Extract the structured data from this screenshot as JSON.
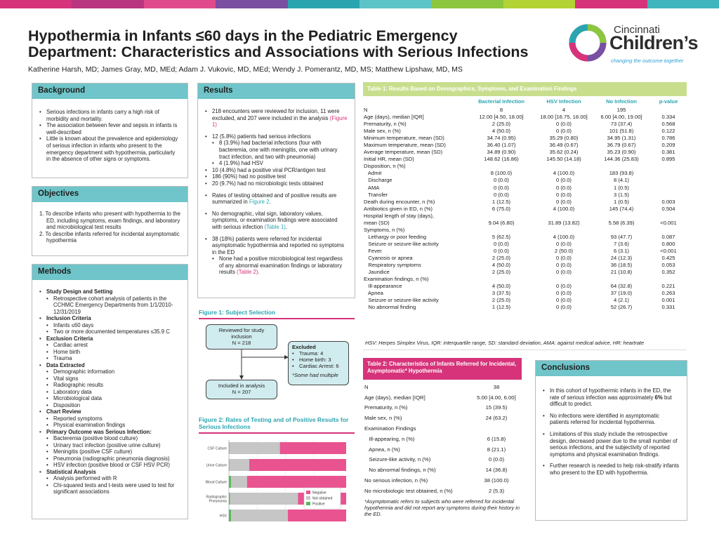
{
  "colors": {
    "accent_teal": "#6fc5c9",
    "accent_pink": "#d6337a",
    "accent_green": "#c8de8d",
    "topbar": [
      "#d6337a",
      "#b93580",
      "#e04a8c",
      "#7a4ea0",
      "#2aa5b0",
      "#5cc3c7",
      "#8cc63f",
      "#b3d334",
      "#d6337a",
      "#3fb5bd"
    ]
  },
  "header": {
    "title_line1": "Hypothermia in Infants ≤60 days in the Pediatric Emergency",
    "title_line2": "Department: Characteristics and Associations with Serious Infections",
    "authors": "Katherine Harsh, MD; James Gray, MD, MEd; Adam J. Vukovic, MD, MEd; Wendy J. Pomerantz, MD, MS; Matthew Lipshaw, MD, MS"
  },
  "logo": {
    "word1": "Cincinnati",
    "word2": "Children’s",
    "tagline": "changing the outcome together"
  },
  "background": {
    "heading": "Background",
    "bullets": [
      "Serious infections in infants carry a high risk of morbidity and mortality.",
      "The association between fever and sepsis in infants is well-described",
      "Little is known about the prevalence and epidemiology of serious infection in infants who present to the emergency department with hypothermia, particularly in the absence of other signs or symptoms."
    ]
  },
  "objectives": {
    "heading": "Objectives",
    "items": [
      "1.  To describe infants who present with hypothermia to the ED, including symptoms, exam findings, and laboratory and microbiological test results",
      "2.  To describe infants referred for incidental asymptomatic hypothermia"
    ]
  },
  "methods": {
    "heading": "Methods",
    "sections": [
      {
        "title": "Study Design and Setting",
        "items": [
          "Retrospective cohort analysis of patients in the CCHMC Emergency Departments from 1/1/2010-12/31/2019"
        ]
      },
      {
        "title": "Inclusion Criteria",
        "items": [
          "Infants ≤60 days",
          "Two or more documented temperatures ≤35.9 C"
        ]
      },
      {
        "title": "Exclusion Criteria",
        "items": [
          "Cardiac arrest",
          "Home birth",
          "Trauma"
        ]
      },
      {
        "title": "Data Extracted",
        "items": [
          "Demographic information",
          "Vital signs",
          "Radiographic results",
          "Laboratory data",
          "Microbiological data",
          "Disposition"
        ]
      },
      {
        "title": "Chart Review",
        "items": [
          "Reported symptoms",
          "Physical examination findings"
        ]
      },
      {
        "title": "Primary Outcome was Serious Infection:",
        "items": [
          "Bacteremia (positive blood culture)",
          "Urinary tract infection (positive urine culture)",
          "Meningitis (positive CSF culture)",
          "Pneumonia (radiographic pneumonia diagnosis)",
          "HSV infection (positive blood or CSF HSV PCR)"
        ]
      },
      {
        "title": "Statistical Analysis",
        "items": [
          "Analysis performed with R",
          "Chi-squared tests and t-tests were used to test for significant associations"
        ]
      }
    ]
  },
  "results": {
    "heading": "Results",
    "p1_text": "218 encounters were reviewed for inclusion, 11 were excluded, and 207 were included in the analysis",
    "p1_link": "(Figure 1)",
    "p2_main": "12 (5.8%) patients had serious infections",
    "p2_sub1": "8 (3.9%) had bacterial infections (four with bacteremia, one with meningitis, one with urinary tract infection, and two with pneumonia)",
    "p2_sub2": "4 (1.9%) had HSV",
    "p2_b2": "10 (4.8%) had a positive viral PCR/antigen test",
    "p2_b3": "186 (90%) had no positive test",
    "p2_b4": "20 (9.7%) had no microbiologic tests obtained",
    "p3_text": "Rates of testing obtained and of positive results are summarized in",
    "p3_link": "Figure 2",
    "p4_text": "No demographic, vital sign, laboratory values, symptoms, or examination findings were associated with serious infection",
    "p4_link": "(Table 1)",
    "p5_text": "38 (18%) patients were referred for incidental asymptomatic hypothermia and reported no symptoms in the ED",
    "p5_sub": "None had a positive microbiological test regardless of any abnormal examination findings or laboratory results",
    "p5_link": "(Table 2)"
  },
  "figure1": {
    "title": "Figure 1: Subject Selection",
    "box1": "Reviewed for study inclusion",
    "box1_n": "N = 218",
    "excluded_title": "Excluded",
    "excluded_items": [
      "Trauma: 4",
      "Home birth: 3",
      "Cardiac Arrest: 6"
    ],
    "excluded_note": "*Some had multiple",
    "box3": "Included in analysis",
    "box3_n": "N = 207"
  },
  "chart_data": {
    "type": "bar",
    "title": "Figure 2: Rates of Testing and of Positive Results for Serious Infections",
    "orientation": "horizontal-stacked",
    "categories": [
      "CSF Culture",
      "Urine Culture",
      "Blood Culture",
      "Radiographic Pneumonia",
      "HSV"
    ],
    "series": [
      {
        "name": "Positive",
        "color": "#5cb85c",
        "values": [
          1,
          1,
          4,
          2,
          4
        ]
      },
      {
        "name": "Not obtained",
        "color": "#c6c6c6",
        "values": [
          89,
          35,
          28,
          120,
          100
        ]
      },
      {
        "name": "Negative",
        "color": "#e9538f",
        "values": [
          117,
          171,
          175,
          85,
          103
        ]
      }
    ],
    "xlim": [
      0,
      207
    ],
    "xticks": [
      "0",
      "50",
      "100",
      "150",
      "200"
    ]
  },
  "table1": {
    "title": "Table 1: Results Based on Demographics, Symptoms, and Examination Findings",
    "columns": [
      "",
      "Bacterial Infection",
      "HSV Infection",
      "No Infection",
      "p-value"
    ],
    "rows": [
      [
        "N",
        "8",
        "4",
        "195",
        ""
      ],
      [
        "Age (days), median [IQR]",
        "12.00 [4.50, 18.00]",
        "18.00 [16.75, 18.00]",
        "6.00 [4.00, 19.00]",
        "0.334"
      ],
      [
        "Prematurity, n (%)",
        "2 (25.0)",
        "0 (0.0)",
        "73 (37.4)",
        "0.568"
      ],
      [
        "Male sex, n (%)",
        "4 (50.0)",
        "0 (0.0)",
        "101 (51.8)",
        "0.122"
      ],
      [
        "Minimum temperature, mean (SD)",
        "34.74 (0.95)",
        "35.29 (0.80)",
        "34.95 (1.31)",
        "0.786"
      ],
      [
        "Maximum temperature, mean (SD)",
        "36.40 (1.07)",
        "36.49 (0.67)",
        "36.79 (0.67)",
        "0.209"
      ],
      [
        "Average temperature, mean (SD)",
        "34.89 (0.90)",
        "35.62 (0.24)",
        "35.23 (0.90)",
        "0.381"
      ],
      [
        "Initial HR, mean (SD)",
        "148.62 (16.86)",
        "145.50 (14.18)",
        "144.36 (25.83)",
        "0.895"
      ],
      [
        "Disposition, n (%)",
        "",
        "",
        "",
        ""
      ],
      [
        "   Admit",
        "8 (100.0)",
        "4 (100.0)",
        "183 (93.8)",
        ""
      ],
      [
        "   Discharge",
        "0 (0.0)",
        "0 (0.0)",
        "8 (4.1)",
        ""
      ],
      [
        "   AMA",
        "0 (0.0)",
        "0 (0.0)",
        "1 (0.5)",
        ""
      ],
      [
        "   Transfer",
        "0 (0.0)",
        "0 (0.0)",
        "3 (1.5)",
        ""
      ],
      [
        "Death during encounter, n (%)",
        "1 (12.5)",
        "0 (0.0)",
        "1 (0.5)",
        "0.003"
      ],
      [
        "Antibiotics given in ED, n (%)",
        "6 (75.0)",
        "4 (100.0)",
        "145 (74.4)",
        "0.504"
      ],
      [
        "Hospital length of stay (days),",
        "",
        "",
        "",
        ""
      ],
      [
        "mean (SD)",
        "9.04 (6.80)",
        "31.89 (13.82)",
        "5.58 (6.39)",
        "<0.001"
      ],
      [
        "Symptoms, n (%)",
        "",
        "",
        "",
        ""
      ],
      [
        "   Lethargy or poor feeding",
        "5 (62.5)",
        "4 (100.0)",
        "93 (47.7)",
        "0.087"
      ],
      [
        "   Seizure or seizure-like activity",
        "0 (0.0)",
        "0 (0.0)",
        "7 (3.6)",
        "0.800"
      ],
      [
        "   Fever",
        "0 (0.0)",
        "2 (50.0)",
        "6 (3.1)",
        "<0.001"
      ],
      [
        "   Cyanosis or apnea",
        "2 (25.0)",
        "0 (0.0)",
        "24 (12.3)",
        "0.425"
      ],
      [
        "   Respiratory symptoms",
        "4 (50.0)",
        "0 (0.0)",
        "36 (18.5)",
        "0.053"
      ],
      [
        "   Jaundice",
        "2 (25.0)",
        "0 (0.0)",
        "21 (10.8)",
        "0.352"
      ],
      [
        "Examination findings, n (%)",
        "",
        "",
        "",
        ""
      ],
      [
        "   Ill-appearance",
        "4 (50.0)",
        "0 (0.0)",
        "64 (32.8)",
        "0.221"
      ],
      [
        "   Apnea",
        "3 (37.5)",
        "0 (0.0)",
        "37 (19.0)",
        "0.263"
      ],
      [
        "   Seizure or seizure-like activity",
        "2 (25.0)",
        "0 (0.0)",
        "4 (2.1)",
        "0.001"
      ],
      [
        "   No abnormal finding",
        "1 (12.5)",
        "0 (0.0)",
        "52 (26.7)",
        "0.331"
      ]
    ],
    "footnote": "HSV: Herpes Simplex Virus, IQR: interquartile range, SD: standard deviation, AMA: against medical advice, HR: heartrate"
  },
  "table2": {
    "title": "Table 2: Characteristics of Infants Referred for Incidental, Asymptomatic* Hypothermia",
    "rows": [
      [
        "N",
        "38"
      ],
      [
        "Age (days), median [IQR]",
        "5.00 [4.00, 6.00]"
      ],
      [
        "Prematurity, n (%)",
        "15 (39.5)"
      ],
      [
        "Male sex, n (%)",
        "24 (63.2)"
      ],
      [
        "Examination Findings",
        ""
      ],
      [
        "   Ill-appearing, n (%)",
        "6 (15.8)"
      ],
      [
        "   Apnea, n (%)",
        "8 (21.1)"
      ],
      [
        "   Seizure-like activity, n (%)",
        "0 (0.0)"
      ],
      [
        "   No abnormal findings, n (%)",
        "14 (36.8)"
      ],
      [
        "No serious infection, n (%)",
        "38 (100.0)"
      ],
      [
        "No microbiologic test obtained, n (%)",
        "2 (5.3)"
      ]
    ],
    "footnote": "*Asymptomatic refers to subjects who were referred for incidental hypothermia and did not report any symptoms during their history in the ED."
  },
  "conclusions": {
    "heading": "Conclusions",
    "b1_text": "In this cohort of hypothermic infants in the ED, the rate of serious infection was approximately",
    "b1_bold": "6%",
    "b1_end": "but difficult to predict.",
    "b2": "No infections were identified in asymptomatic patients referred for incidental hypothermia.",
    "b3": "Limitations of this study include the retrospective design, decreased power due to the small number of serious infections, and the subjectivity of reported symptoms and physical examination findings.",
    "b4": "Further research is needed to help risk-stratify infants who present to the ED with hypothermia."
  }
}
